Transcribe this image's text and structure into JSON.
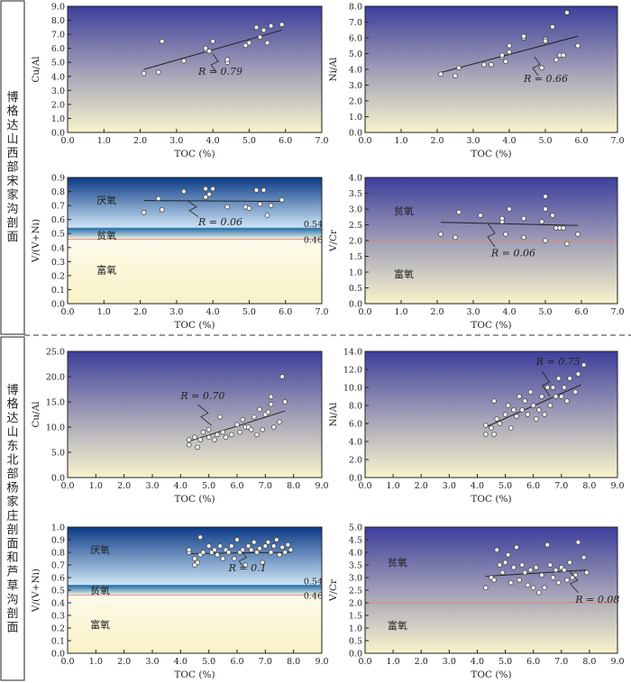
{
  "sections": [
    {
      "label": "博格达山西部宋家沟剖面"
    },
    {
      "label": "博格达山东北部杨家庄剖面和芦草沟剖面"
    }
  ],
  "colors": {
    "redox_top": "#3d3f9c",
    "redox_bottom": "#f8f4cc",
    "anoxic_top": "#0b3a86",
    "threshold_line": "#e08a6a",
    "points_fill": "#ffffff",
    "points_stroke": "#444444"
  },
  "chart_data": [
    {
      "type": "scatter",
      "panel": "A",
      "xlabel": "TOC (%)",
      "ylabel": "Cu/Al",
      "xlim": [
        0,
        7
      ],
      "ylim": [
        0,
        9
      ],
      "xticks": [
        "0.0",
        "1.0",
        "2.0",
        "3.0",
        "4.0",
        "5.0",
        "6.0",
        "7.0"
      ],
      "yticks": [
        "0.0",
        "1.0",
        "2.0",
        "3.0",
        "4.0",
        "5.0",
        "6.0",
        "7.0",
        "8.0",
        "9.0"
      ],
      "points": [
        [
          2.1,
          4.2
        ],
        [
          2.5,
          4.3
        ],
        [
          2.6,
          6.5
        ],
        [
          3.2,
          5.1
        ],
        [
          3.8,
          5.9
        ],
        [
          3.8,
          6.0
        ],
        [
          3.9,
          5.8
        ],
        [
          4.0,
          6.5
        ],
        [
          4.4,
          5.0
        ],
        [
          4.4,
          5.2
        ],
        [
          4.9,
          6.2
        ],
        [
          5.0,
          6.4
        ],
        [
          5.2,
          7.5
        ],
        [
          5.3,
          6.8
        ],
        [
          5.4,
          7.3
        ],
        [
          5.5,
          6.4
        ],
        [
          5.6,
          7.6
        ],
        [
          5.9,
          7.7
        ]
      ],
      "fit": [
        [
          2.1,
          4.5
        ],
        [
          5.9,
          7.3
        ]
      ],
      "annotation": {
        "text": "R = 0.79",
        "x": 3.6,
        "y": 4.1,
        "from": [
          4.0,
          5.6
        ],
        "to": [
          4.1,
          4.3
        ]
      }
    },
    {
      "type": "scatter",
      "panel": "B",
      "xlabel": "TOC (%)",
      "ylabel": "Ni/Al",
      "xlim": [
        0,
        7
      ],
      "ylim": [
        0,
        8
      ],
      "xticks": [
        "0.0",
        "1.0",
        "2.0",
        "3.0",
        "4.0",
        "5.0",
        "6.0",
        "7.0"
      ],
      "yticks": [
        "0.0",
        "1.0",
        "2.0",
        "3.0",
        "4.0",
        "5.0",
        "6.0",
        "7.0",
        "8.0"
      ],
      "points": [
        [
          2.1,
          3.7
        ],
        [
          2.5,
          3.6
        ],
        [
          2.6,
          4.1
        ],
        [
          3.3,
          4.3
        ],
        [
          3.5,
          4.3
        ],
        [
          3.8,
          4.8
        ],
        [
          3.8,
          4.9
        ],
        [
          3.9,
          4.5
        ],
        [
          4.0,
          5.1
        ],
        [
          4.0,
          5.5
        ],
        [
          4.4,
          6.0
        ],
        [
          4.4,
          6.1
        ],
        [
          4.9,
          4.1
        ],
        [
          5.0,
          5.9
        ],
        [
          5.0,
          5.8
        ],
        [
          5.2,
          6.7
        ],
        [
          5.3,
          4.6
        ],
        [
          5.4,
          4.9
        ],
        [
          5.5,
          4.9
        ],
        [
          5.6,
          7.6
        ],
        [
          5.9,
          5.5
        ]
      ],
      "fit": [
        [
          2.1,
          3.8
        ],
        [
          5.9,
          6.1
        ]
      ],
      "annotation": {
        "text": "R = 0.66",
        "x": 4.4,
        "y": 3.2,
        "from": [
          4.7,
          4.8
        ],
        "to": [
          4.8,
          3.6
        ]
      }
    },
    {
      "type": "scatter",
      "panel": "C",
      "xlabel": "TOC (%)",
      "ylabel": "V/(V+Ni)",
      "xlim": [
        0,
        7
      ],
      "ylim": [
        0,
        0.9
      ],
      "xticks": [
        "0.0",
        "1.0",
        "2.0",
        "3.0",
        "4.0",
        "5.0",
        "6.0",
        "7.0"
      ],
      "yticks": [
        "0.0",
        "0.1",
        "0.2",
        "0.3",
        "0.4",
        "0.5",
        "0.6",
        "0.7",
        "0.8",
        "0.9"
      ],
      "points": [
        [
          2.1,
          0.65
        ],
        [
          2.5,
          0.75
        ],
        [
          2.6,
          0.67
        ],
        [
          3.2,
          0.8
        ],
        [
          3.8,
          0.76
        ],
        [
          3.8,
          0.82
        ],
        [
          3.9,
          0.78
        ],
        [
          4.0,
          0.82
        ],
        [
          4.4,
          0.69
        ],
        [
          4.9,
          0.69
        ],
        [
          5.0,
          0.68
        ],
        [
          5.2,
          0.81
        ],
        [
          5.3,
          0.71
        ],
        [
          5.4,
          0.81
        ],
        [
          5.5,
          0.63
        ],
        [
          5.6,
          0.7
        ],
        [
          5.9,
          0.74
        ]
      ],
      "fit": [
        [
          2.1,
          0.735
        ],
        [
          5.9,
          0.73
        ]
      ],
      "thresholds": [
        {
          "value": 0.54,
          "label": "0.54"
        },
        {
          "value": 0.46,
          "label": "0.46"
        }
      ],
      "zones": [
        {
          "label": "厌氧",
          "x": 0.8,
          "y": 0.74
        },
        {
          "label": "贫氧",
          "x": 0.8,
          "y": 0.49
        },
        {
          "label": "富氧",
          "x": 0.8,
          "y": 0.24
        }
      ],
      "annotation": {
        "text": "R = 0.06",
        "x": 3.6,
        "y": 0.56,
        "from": [
          3.3,
          0.735
        ],
        "to": [
          3.6,
          0.62
        ]
      }
    },
    {
      "type": "scatter",
      "panel": "D",
      "xlabel": "TOC (%)",
      "ylabel": "V/Cr",
      "xlim": [
        0,
        7
      ],
      "ylim": [
        0,
        4
      ],
      "xticks": [
        "0.0",
        "1.0",
        "2.0",
        "3.0",
        "4.0",
        "5.0",
        "6.0",
        "7.0"
      ],
      "yticks": [
        "0.0",
        "0.5",
        "1.0",
        "1.5",
        "2.0",
        "2.5",
        "3.0",
        "3.5",
        "4.0"
      ],
      "points": [
        [
          2.1,
          2.2
        ],
        [
          2.5,
          2.1
        ],
        [
          2.6,
          2.9
        ],
        [
          3.2,
          2.8
        ],
        [
          3.8,
          2.6
        ],
        [
          3.8,
          2.7
        ],
        [
          3.9,
          2.2
        ],
        [
          4.0,
          3.0
        ],
        [
          4.4,
          2.1
        ],
        [
          4.4,
          2.7
        ],
        [
          4.9,
          2.6
        ],
        [
          5.0,
          2.0
        ],
        [
          5.0,
          3.0
        ],
        [
          5.0,
          3.4
        ],
        [
          5.2,
          2.8
        ],
        [
          5.3,
          2.4
        ],
        [
          5.4,
          2.4
        ],
        [
          5.5,
          2.4
        ],
        [
          5.6,
          1.9
        ],
        [
          5.9,
          2.2
        ]
      ],
      "fit": [
        [
          2.1,
          2.58
        ],
        [
          5.9,
          2.48
        ]
      ],
      "threshold": {
        "value": 2.0
      },
      "zones": [
        {
          "label": "贫氧",
          "x": 0.8,
          "y": 2.95
        },
        {
          "label": "富氧",
          "x": 0.8,
          "y": 0.95
        }
      ],
      "annotation": {
        "text": "R = 0.06",
        "x": 3.5,
        "y": 1.5,
        "from": [
          3.4,
          2.55
        ],
        "to": [
          3.6,
          1.8
        ]
      }
    },
    {
      "type": "scatter",
      "panel": "E",
      "xlabel": "TOC (%)",
      "ylabel": "Cu/Al",
      "xlim": [
        0,
        9
      ],
      "ylim": [
        0,
        25
      ],
      "xticks": [
        "0.0",
        "1.0",
        "2.0",
        "3.0",
        "4.0",
        "5.0",
        "6.0",
        "7.0",
        "8.0",
        "9.0"
      ],
      "yticks": [
        "0.0",
        "5.0",
        "10.0",
        "15.0",
        "20.0",
        "25.0"
      ],
      "points": [
        [
          4.3,
          6.5
        ],
        [
          4.3,
          7.5
        ],
        [
          4.5,
          8.0
        ],
        [
          4.6,
          6.0
        ],
        [
          4.7,
          7.5
        ],
        [
          4.8,
          9.0
        ],
        [
          5.0,
          8.0
        ],
        [
          5.0,
          9.5
        ],
        [
          5.2,
          7.5
        ],
        [
          5.3,
          8.5
        ],
        [
          5.4,
          12.0
        ],
        [
          5.5,
          9.0
        ],
        [
          5.6,
          8.0
        ],
        [
          5.8,
          8.5
        ],
        [
          6.0,
          10.5
        ],
        [
          6.1,
          9.0
        ],
        [
          6.2,
          11.5
        ],
        [
          6.3,
          10.0
        ],
        [
          6.4,
          10.0
        ],
        [
          6.5,
          9.5
        ],
        [
          6.6,
          12.0
        ],
        [
          6.7,
          8.5
        ],
        [
          6.8,
          13.5
        ],
        [
          6.9,
          9.5
        ],
        [
          7.0,
          12.5
        ],
        [
          7.1,
          13.0
        ],
        [
          7.2,
          14.5
        ],
        [
          7.2,
          16.0
        ],
        [
          7.3,
          10.0
        ],
        [
          7.5,
          11.0
        ],
        [
          7.6,
          20.0
        ],
        [
          7.7,
          15.0
        ]
      ],
      "fit": [
        [
          4.3,
          7.2
        ],
        [
          7.7,
          13.2
        ]
      ],
      "annotation": {
        "text": "R = 0.70",
        "x": 4.0,
        "y": 15.5,
        "from": [
          4.6,
          14.5
        ],
        "to": [
          5.1,
          10.3
        ]
      }
    },
    {
      "type": "scatter",
      "panel": "F",
      "xlabel": "TOC (%)",
      "ylabel": "Ni/Al",
      "xlim": [
        0,
        9
      ],
      "ylim": [
        0,
        14
      ],
      "xticks": [
        "0.0",
        "1.0",
        "2.0",
        "3.0",
        "4.0",
        "5.0",
        "6.0",
        "7.0",
        "8.0",
        "9.0"
      ],
      "yticks": [
        "0.0",
        "2.0",
        "4.0",
        "6.0",
        "8.0",
        "10.0",
        "12.0",
        "14.0"
      ],
      "points": [
        [
          4.3,
          4.8
        ],
        [
          4.3,
          5.8
        ],
        [
          4.5,
          5.5
        ],
        [
          4.6,
          8.5
        ],
        [
          4.6,
          4.8
        ],
        [
          4.7,
          6.5
        ],
        [
          4.8,
          6.0
        ],
        [
          5.0,
          7.0
        ],
        [
          5.1,
          8.0
        ],
        [
          5.2,
          5.5
        ],
        [
          5.3,
          7.5
        ],
        [
          5.4,
          6.8
        ],
        [
          5.5,
          9.0
        ],
        [
          5.6,
          7.5
        ],
        [
          5.7,
          8.5
        ],
        [
          5.8,
          7.0
        ],
        [
          5.9,
          9.5
        ],
        [
          6.0,
          8.0
        ],
        [
          6.1,
          6.5
        ],
        [
          6.2,
          7.5
        ],
        [
          6.3,
          9.0
        ],
        [
          6.4,
          7.0
        ],
        [
          6.5,
          10.0
        ],
        [
          6.6,
          8.0
        ],
        [
          6.7,
          10.0
        ],
        [
          6.8,
          9.0
        ],
        [
          6.9,
          11.0
        ],
        [
          7.0,
          9.0
        ],
        [
          7.1,
          10.0
        ],
        [
          7.2,
          8.5
        ],
        [
          7.3,
          11.0
        ],
        [
          7.5,
          9.5
        ],
        [
          7.6,
          11.5
        ],
        [
          7.8,
          12.5
        ]
      ],
      "fit": [
        [
          4.3,
          5.6
        ],
        [
          7.7,
          10.3
        ]
      ],
      "annotation": {
        "text": "R = 0.75",
        "x": 6.1,
        "y": 12.5,
        "from": [
          6.3,
          11.8
        ],
        "to": [
          6.6,
          9.0
        ]
      }
    },
    {
      "type": "scatter",
      "panel": "G",
      "xlabel": "TOC (%)",
      "ylabel": "V/(V+Ni)",
      "xlim": [
        0,
        9
      ],
      "ylim": [
        0,
        1.0
      ],
      "xticks": [
        "0.0",
        "1.0",
        "2.0",
        "3.0",
        "4.0",
        "5.0",
        "6.0",
        "7.0",
        "8.0",
        "9.0"
      ],
      "yticks": [
        "0.0",
        "0.1",
        "0.2",
        "0.3",
        "0.4",
        "0.5",
        "0.6",
        "0.7",
        "0.8",
        "0.9",
        "1.0"
      ],
      "points": [
        [
          4.3,
          0.8
        ],
        [
          4.3,
          0.82
        ],
        [
          4.5,
          0.75
        ],
        [
          4.5,
          0.7
        ],
        [
          4.6,
          0.72
        ],
        [
          4.7,
          0.78
        ],
        [
          4.7,
          0.92
        ],
        [
          4.8,
          0.8
        ],
        [
          5.0,
          0.85
        ],
        [
          5.1,
          0.8
        ],
        [
          5.2,
          0.82
        ],
        [
          5.3,
          0.78
        ],
        [
          5.4,
          0.85
        ],
        [
          5.5,
          0.75
        ],
        [
          5.6,
          0.82
        ],
        [
          5.7,
          0.8
        ],
        [
          5.8,
          0.85
        ],
        [
          5.9,
          0.75
        ],
        [
          6.0,
          0.9
        ],
        [
          6.1,
          0.8
        ],
        [
          6.2,
          0.82
        ],
        [
          6.3,
          0.7
        ],
        [
          6.4,
          0.85
        ],
        [
          6.5,
          0.82
        ],
        [
          6.6,
          0.88
        ],
        [
          6.7,
          0.8
        ],
        [
          6.8,
          0.83
        ],
        [
          6.9,
          0.72
        ],
        [
          7.0,
          0.85
        ],
        [
          7.1,
          0.88
        ],
        [
          7.2,
          0.8
        ],
        [
          7.3,
          0.85
        ],
        [
          7.4,
          0.9
        ],
        [
          7.5,
          0.78
        ],
        [
          7.6,
          0.84
        ],
        [
          7.7,
          0.8
        ],
        [
          7.8,
          0.86
        ],
        [
          7.9,
          0.82
        ]
      ],
      "fit": [
        [
          4.3,
          0.79
        ],
        [
          7.9,
          0.8
        ]
      ],
      "thresholds": [
        {
          "value": 0.54,
          "label": "0.54"
        },
        {
          "value": 0.46,
          "label": "0.46"
        }
      ],
      "zones": [
        {
          "label": "厌氧",
          "x": 0.8,
          "y": 0.82
        },
        {
          "label": "贫氧",
          "x": 0.8,
          "y": 0.5
        },
        {
          "label": "富氧",
          "x": 0.8,
          "y": 0.23
        }
      ],
      "annotation": {
        "text": "R = 0.1",
        "x": 5.7,
        "y": 0.65,
        "from": [
          6.2,
          0.8
        ],
        "to": [
          6.2,
          0.69
        ]
      }
    },
    {
      "type": "scatter",
      "panel": "H",
      "xlabel": "TOC (%)",
      "ylabel": "V/Cr",
      "xlim": [
        0,
        9
      ],
      "ylim": [
        0,
        5
      ],
      "xticks": [
        "0.0",
        "1.0",
        "2.0",
        "3.0",
        "4.0",
        "5.0",
        "6.0",
        "7.0",
        "8.0",
        "9.0"
      ],
      "yticks": [
        "0.0",
        "0.5",
        "1.0",
        "1.5",
        "2.0",
        "2.5",
        "3.0",
        "3.5",
        "4.0",
        "4.5",
        "5.0"
      ],
      "points": [
        [
          4.3,
          2.6
        ],
        [
          4.5,
          3.0
        ],
        [
          4.6,
          2.9
        ],
        [
          4.7,
          4.1
        ],
        [
          4.8,
          3.5
        ],
        [
          4.9,
          3.2
        ],
        [
          5.0,
          3.6
        ],
        [
          5.1,
          3.9
        ],
        [
          5.2,
          2.8
        ],
        [
          5.3,
          3.4
        ],
        [
          5.4,
          4.2
        ],
        [
          5.5,
          2.9
        ],
        [
          5.6,
          3.5
        ],
        [
          5.7,
          3.2
        ],
        [
          5.8,
          2.7
        ],
        [
          5.9,
          3.3
        ],
        [
          6.0,
          2.6
        ],
        [
          6.1,
          3.4
        ],
        [
          6.2,
          2.4
        ],
        [
          6.3,
          3.1
        ],
        [
          6.4,
          2.6
        ],
        [
          6.5,
          4.3
        ],
        [
          6.6,
          3.5
        ],
        [
          6.7,
          3.0
        ],
        [
          6.8,
          3.3
        ],
        [
          6.9,
          2.8
        ],
        [
          7.0,
          3.4
        ],
        [
          7.1,
          3.3
        ],
        [
          7.2,
          2.9
        ],
        [
          7.3,
          3.6
        ],
        [
          7.4,
          3.0
        ],
        [
          7.5,
          3.1
        ],
        [
          7.6,
          4.4
        ],
        [
          7.8,
          3.8
        ],
        [
          7.9,
          3.2
        ]
      ],
      "fit": [
        [
          4.3,
          3.05
        ],
        [
          7.9,
          3.3
        ]
      ],
      "threshold": {
        "value": 2.0
      },
      "zones": [
        {
          "label": "贫氧",
          "x": 0.8,
          "y": 3.6
        },
        {
          "label": "富氧",
          "x": 0.8,
          "y": 1.1
        }
      ],
      "annotation": {
        "text": "R = 0.08",
        "x": 7.5,
        "y": 2.0,
        "from": [
          7.3,
          3.25
        ],
        "to": [
          7.6,
          2.4
        ]
      }
    }
  ]
}
